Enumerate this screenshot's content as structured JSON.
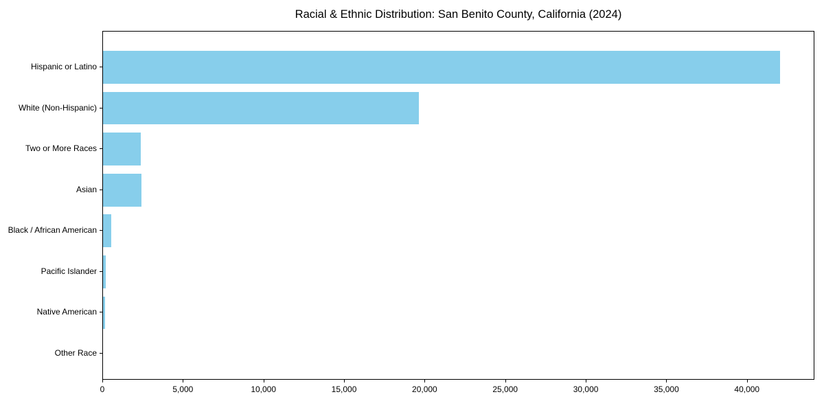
{
  "chart_data": {
    "type": "bar",
    "orientation": "horizontal",
    "title": "Racial & Ethnic Distribution: San Benito County, California (2024)",
    "categories": [
      "Hispanic or Latino",
      "White (Non-Hispanic)",
      "Two or More Races",
      "Asian",
      "Black / African American",
      "Pacific Islander",
      "Native American",
      "Other Race"
    ],
    "values": [
      42000,
      19600,
      2350,
      2400,
      510,
      170,
      130,
      0
    ],
    "xlabel": "",
    "ylabel": "",
    "xlim": [
      0,
      44100
    ],
    "x_ticks": [
      0,
      5000,
      10000,
      15000,
      20000,
      25000,
      30000,
      35000,
      40000
    ],
    "x_tick_labels": [
      "0",
      "5,000",
      "10,000",
      "15,000",
      "20,000",
      "25,000",
      "30,000",
      "35,000",
      "40,000"
    ],
    "grid": false,
    "legend": "none",
    "bar_color": "#87CEEB",
    "frame_color": "#000000",
    "text_color": "#000000",
    "background_color": "#ffffff"
  }
}
